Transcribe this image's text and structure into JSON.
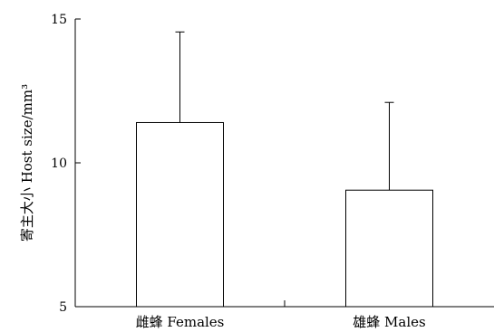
{
  "chart_data": {
    "type": "bar",
    "title": "",
    "xlabel": "",
    "ylabel": "寄主大小 Host size/mm³",
    "categories": [
      "雌蜂 Females",
      "雄蜂 Males"
    ],
    "values": [
      11.4,
      9.05
    ],
    "error_upper": [
      14.55,
      12.1
    ],
    "ylim": [
      5,
      15
    ],
    "yticks": [
      5,
      10,
      15
    ],
    "ytick_labels": [
      "5",
      "10",
      "15"
    ],
    "grid": false,
    "legend": "none",
    "colors": {
      "bar_fill": "#ffffff",
      "stroke": "#000000"
    }
  }
}
